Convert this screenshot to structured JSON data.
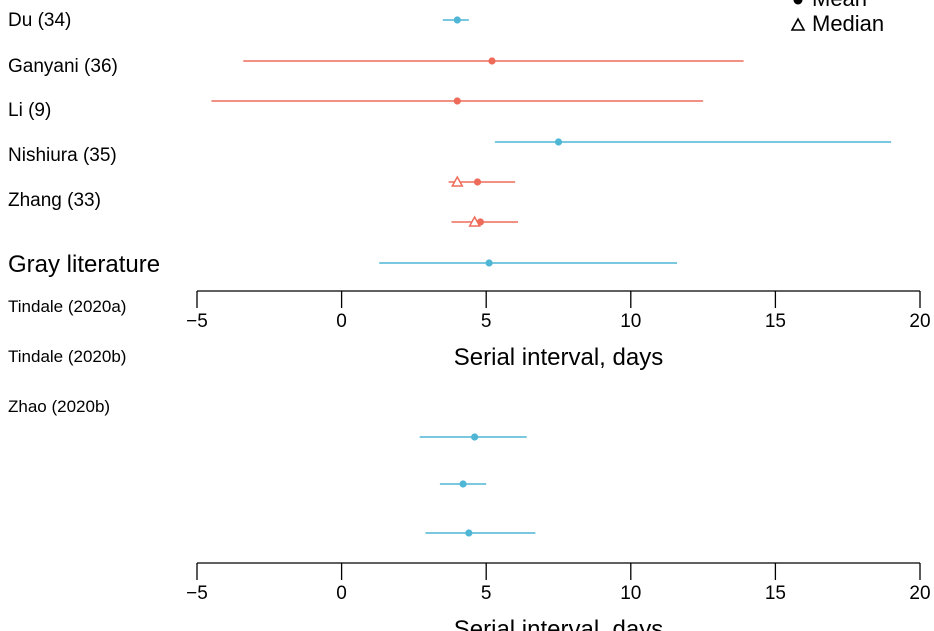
{
  "chart_data": [
    {
      "type": "forest",
      "legend": {
        "placement": "top-right",
        "entries": [
          {
            "label": "Mean",
            "marker": "filled-circle"
          },
          {
            "label": "Median",
            "marker": "open-triangle"
          }
        ]
      },
      "row_labels": [
        "Du (34)",
        "Ganyani (36)",
        "Li (9)",
        "Nishiura (35)",
        "Zhang (33)"
      ],
      "estimates": [
        {
          "estimate": 4.0,
          "lo": 3.5,
          "hi": 4.4,
          "color": "#4FB6D6",
          "median": null
        },
        {
          "estimate": 5.2,
          "lo": -3.4,
          "hi": 13.9,
          "color": "#EE6B5A",
          "median": null
        },
        {
          "estimate": 4.0,
          "lo": -4.5,
          "hi": 12.5,
          "color": "#EE6B5A",
          "median": null
        },
        {
          "estimate": 7.5,
          "lo": 5.3,
          "hi": 19.0,
          "color": "#4FB6D6",
          "median": null
        },
        {
          "estimate": 4.7,
          "lo": 3.7,
          "hi": 6.0,
          "color": "#EE6B5A",
          "median": 4.0
        },
        {
          "estimate": 4.8,
          "lo": 3.8,
          "hi": 6.1,
          "color": "#EE6B5A",
          "median": 4.6
        },
        {
          "estimate": 5.1,
          "lo": 1.3,
          "hi": 11.6,
          "color": "#4FB6D6",
          "median": null
        }
      ],
      "xlabel": "Serial interval, days",
      "xlim": [
        -5,
        20
      ],
      "xticks": [
        -5,
        0,
        5,
        10,
        15,
        20
      ],
      "xtick_labels": [
        "−5",
        "0",
        "5",
        "10",
        "15",
        "20"
      ]
    },
    {
      "type": "forest",
      "section_title": "Gray literature",
      "row_labels": [
        "Tindale (2020a)",
        "Tindale (2020b)",
        "Zhao (2020b)"
      ],
      "estimates": [
        {
          "estimate": 4.6,
          "lo": 2.7,
          "hi": 6.4,
          "color": "#4FB6D6"
        },
        {
          "estimate": 4.2,
          "lo": 3.4,
          "hi": 5.0,
          "color": "#4FB6D6"
        },
        {
          "estimate": 4.4,
          "lo": 2.9,
          "hi": 6.7,
          "color": "#4FB6D6"
        }
      ],
      "xlabel": "Serial interval, days",
      "xlim": [
        -5,
        20
      ],
      "xticks": [
        -5,
        0,
        5,
        10,
        15,
        20
      ],
      "xtick_labels": [
        "−5",
        "0",
        "5",
        "10",
        "15",
        "20"
      ]
    }
  ]
}
